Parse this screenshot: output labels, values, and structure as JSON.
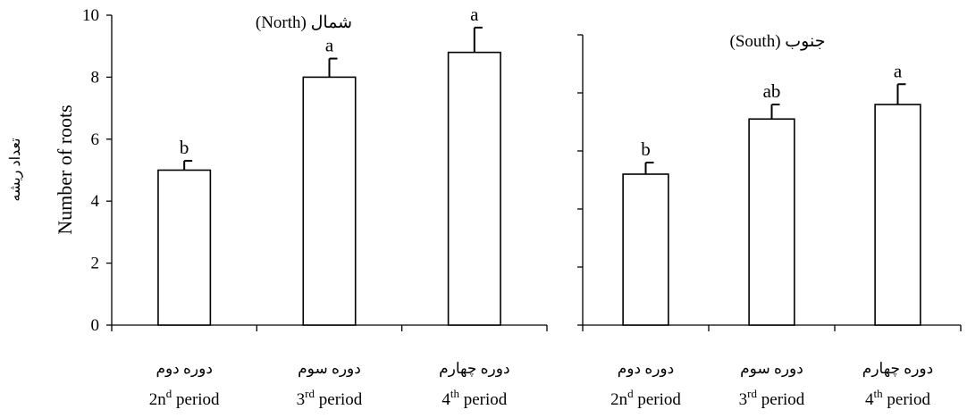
{
  "chart_data": [
    {
      "type": "bar",
      "title": "شمال (North)",
      "ylabel": "Number of roots",
      "ylabel_fa": "تعداد ریشه",
      "ylim": [
        0,
        10
      ],
      "yticks": [
        "0",
        "2",
        "4",
        "6",
        "8",
        "10"
      ],
      "categories": [
        {
          "fa": "دوره دوم",
          "en": "2nd period",
          "base": "2n",
          "sup": "d",
          "rest": " period"
        },
        {
          "fa": "دوره سوم",
          "en": "3rd period",
          "base": "3",
          "sup": "rd",
          "rest": " period"
        },
        {
          "fa": "دوره چهارم",
          "en": "4th period",
          "base": "4",
          "sup": "th",
          "rest": " period"
        }
      ],
      "values": [
        5.0,
        8.0,
        8.8
      ],
      "errors": [
        0.3,
        0.6,
        0.8
      ],
      "letters": [
        "b",
        "a",
        "a"
      ]
    },
    {
      "type": "bar",
      "title": "جنوب (South)",
      "ylim": [
        0,
        10
      ],
      "categories": [
        {
          "fa": "دوره دوم",
          "en": "2nd period",
          "base": "2n",
          "sup": "d",
          "rest": " period"
        },
        {
          "fa": "دوره سوم",
          "en": "3rd period",
          "base": "3",
          "sup": "rd",
          "rest": " period"
        },
        {
          "fa": "دوره چهارم",
          "en": "4th period",
          "base": "4",
          "sup": "th",
          "rest": " period"
        }
      ],
      "values": [
        5.2,
        7.1,
        7.6
      ],
      "errors": [
        0.4,
        0.5,
        0.7
      ],
      "letters": [
        "b",
        "ab",
        "a"
      ]
    }
  ]
}
